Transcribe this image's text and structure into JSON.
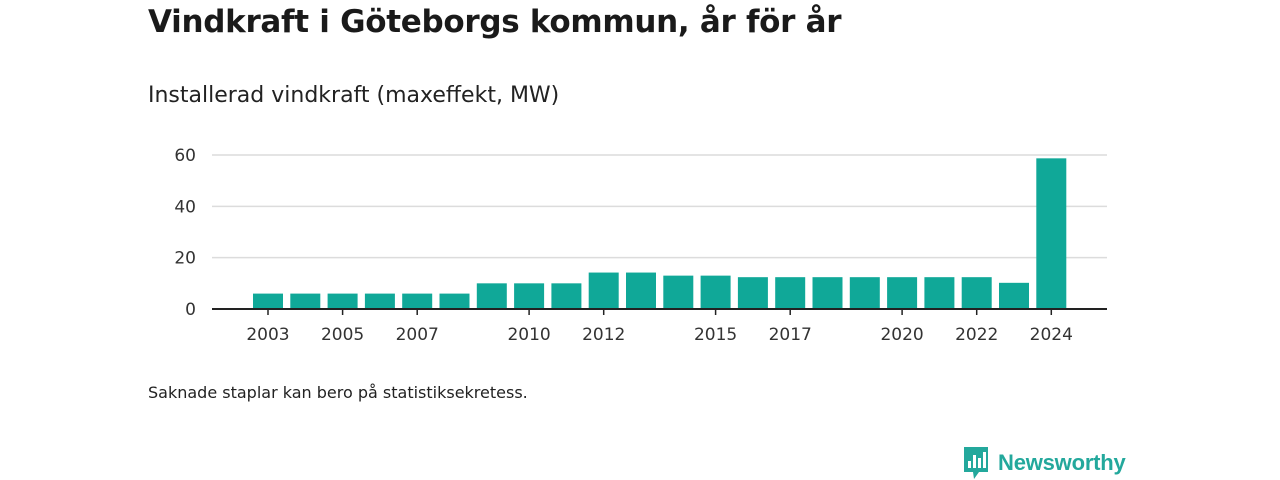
{
  "title": "Vindkraft i Göteborgs kommun, år för år",
  "subtitle": "Installerad vindkraft (maxeffekt, MW)",
  "note": "Saknade staplar kan bero på statistiksekretess.",
  "brand": {
    "name": "Newsworthy",
    "icon": "newsworthy-logo-icon",
    "color": "#23a89c"
  },
  "chart_data": {
    "type": "bar",
    "title": "Installerad vindkraft (maxeffekt, MW)",
    "xlabel": "",
    "ylabel": "",
    "color": "#10a898",
    "categories": [
      2003,
      2004,
      2005,
      2006,
      2007,
      2008,
      2009,
      2010,
      2011,
      2012,
      2013,
      2014,
      2015,
      2016,
      2017,
      2018,
      2019,
      2020,
      2021,
      2022,
      2023,
      2024
    ],
    "values": [
      6,
      6,
      6,
      6,
      6,
      6,
      10,
      10,
      10,
      14.2,
      14.2,
      13,
      13,
      12.4,
      12.4,
      12.4,
      12.4,
      12.4,
      12.4,
      12.4,
      10.2,
      58.7
    ],
    "x_tick_labels": [
      "2003",
      "2005",
      "2007",
      "2010",
      "2012",
      "2015",
      "2017",
      "2020",
      "2022",
      "2024"
    ],
    "y_ticks": [
      0,
      20,
      40,
      60
    ],
    "ylim": [
      0,
      60
    ],
    "grid": true,
    "legend": "none"
  }
}
